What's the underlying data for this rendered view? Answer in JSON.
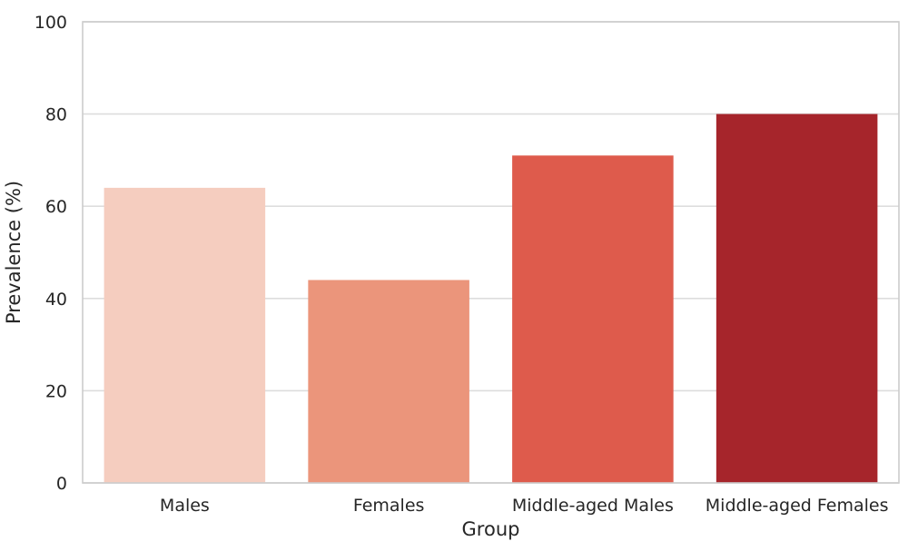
{
  "chart_data": {
    "type": "bar",
    "categories": [
      "Males",
      "Females",
      "Middle-aged Males",
      "Middle-aged Females"
    ],
    "values": [
      64,
      44,
      71,
      80
    ],
    "colors": [
      "#f5cdbf",
      "#eb957b",
      "#de5b4c",
      "#a6252b"
    ],
    "xlabel": "Group",
    "ylabel": "Prevalence (%)",
    "ylim": [
      0,
      100
    ],
    "yticks": [
      0,
      20,
      40,
      60,
      80,
      100
    ],
    "grid": "horizontal",
    "legend": "none"
  }
}
